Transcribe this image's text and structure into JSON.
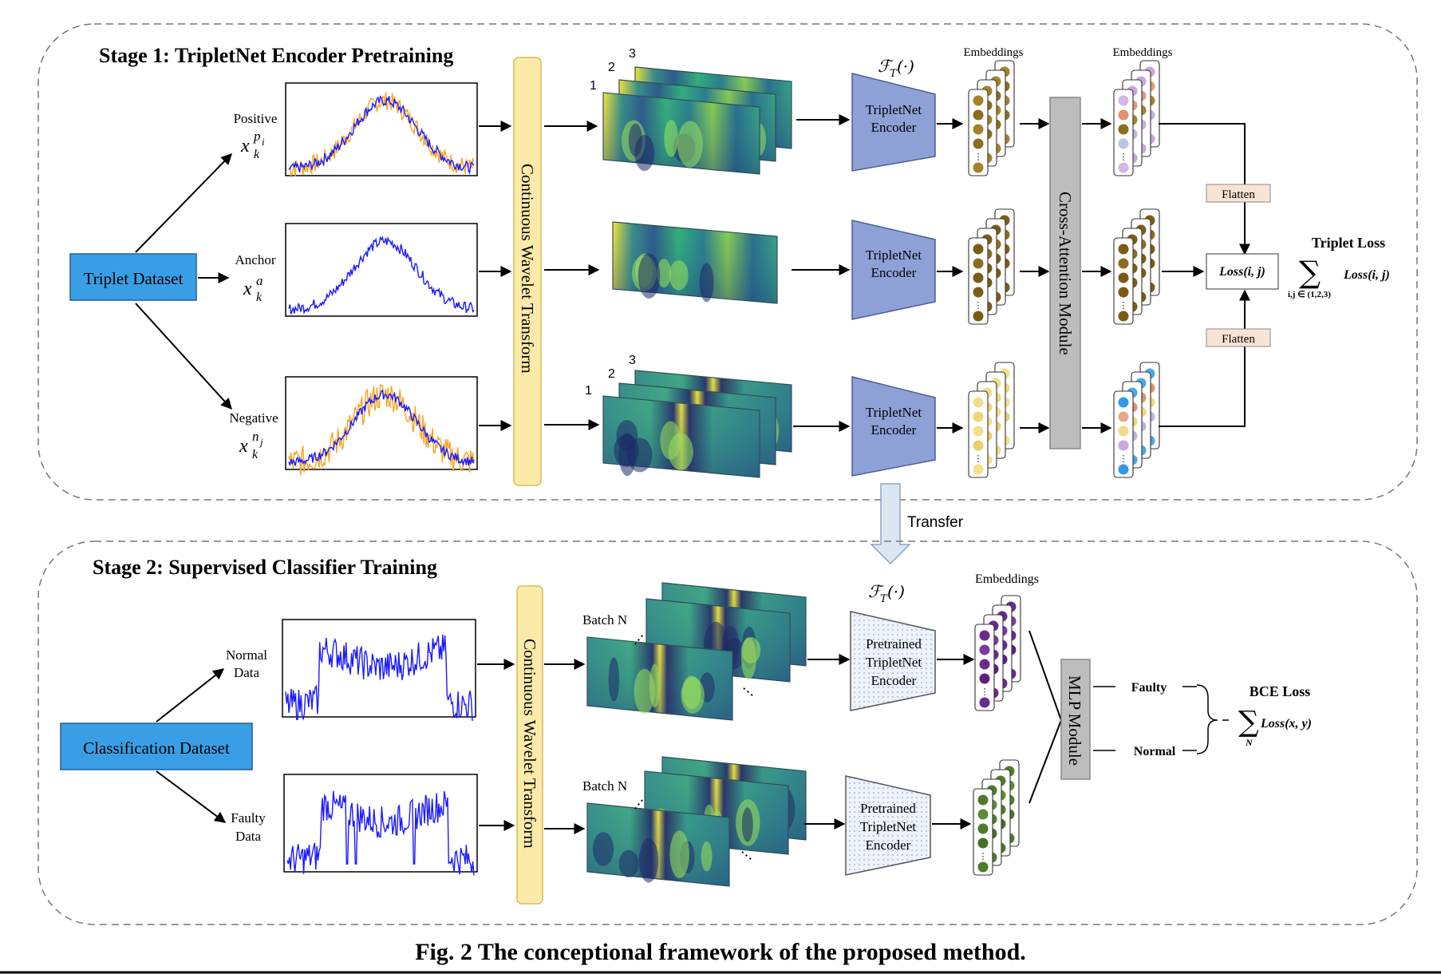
{
  "stage1": {
    "title": "Stage 1: TripletNet Encoder Pretraining",
    "dataset": "Triplet Dataset",
    "branches": [
      {
        "label": "Positive",
        "sym": "x",
        "sub": "k",
        "sup": "p",
        "supsub": "i"
      },
      {
        "label": "Anchor",
        "sym": "x",
        "sub": "k",
        "sup": "a",
        "supsub": ""
      },
      {
        "label": "Negative",
        "sym": "x",
        "sub": "k",
        "sup": "n",
        "supsub": "j"
      }
    ],
    "cwt": "Continuous Wavelet Transform",
    "stack_numbers": [
      "1",
      "2",
      "3"
    ],
    "ft_label": "ℱ",
    "ft_sub": "T",
    "ft_arg": "(·)",
    "encoder": "TripletNet Encoder",
    "embeddings": "Embeddings",
    "cross_attention": "Cross-Attention  Module",
    "flatten": "Flatten",
    "loss_box": "Loss(i, j)",
    "triplet_loss_title": "Triplet Loss",
    "triplet_loss_sum": "Loss(i, j)",
    "triplet_loss_index": "i,j ∈ (1,2,3)"
  },
  "transfer": "Transfer",
  "stage2": {
    "title": "Stage 2: Supervised Classifier Training",
    "dataset": "Classification Dataset",
    "branches": [
      {
        "label_line1": "Normal",
        "label_line2": "Data"
      },
      {
        "label_line1": "Faulty",
        "label_line2": "Data"
      }
    ],
    "cwt": "Continuous Wavelet Transform",
    "batch": "Batch N",
    "ellipsis": "⋮",
    "encoder_lines": [
      "Pretrained",
      "TripletNet",
      "Encoder"
    ],
    "embeddings": "Embeddings",
    "mlp": "MLP Module",
    "outputs": [
      "Faulty",
      "Normal"
    ],
    "bce_title": "BCE Loss",
    "bce_sum": "Loss(x, y)",
    "bce_index": "N"
  },
  "caption": "Fig. 2 The conceptional framework of the proposed method.",
  "colors": {
    "blue_box": "#3a9ee6",
    "cwt_fill": "#fbeaa8",
    "cwt_stroke": "#d9bc5a",
    "encoder_fill": "#8ea1d7",
    "cross_attention": "#bdbdbd",
    "flatten_fill": "#fbe3d3",
    "signal": "#1a1aff",
    "signal_alt": "#f5a623",
    "emb_brown": "#8a6d1e",
    "emb_gold": "#a5822a",
    "emb_dark": "#7a5c16",
    "emb_yellow": "#f2df8a",
    "emb_purple": "#6a2a8f",
    "emb_green": "#4f7a2a"
  }
}
